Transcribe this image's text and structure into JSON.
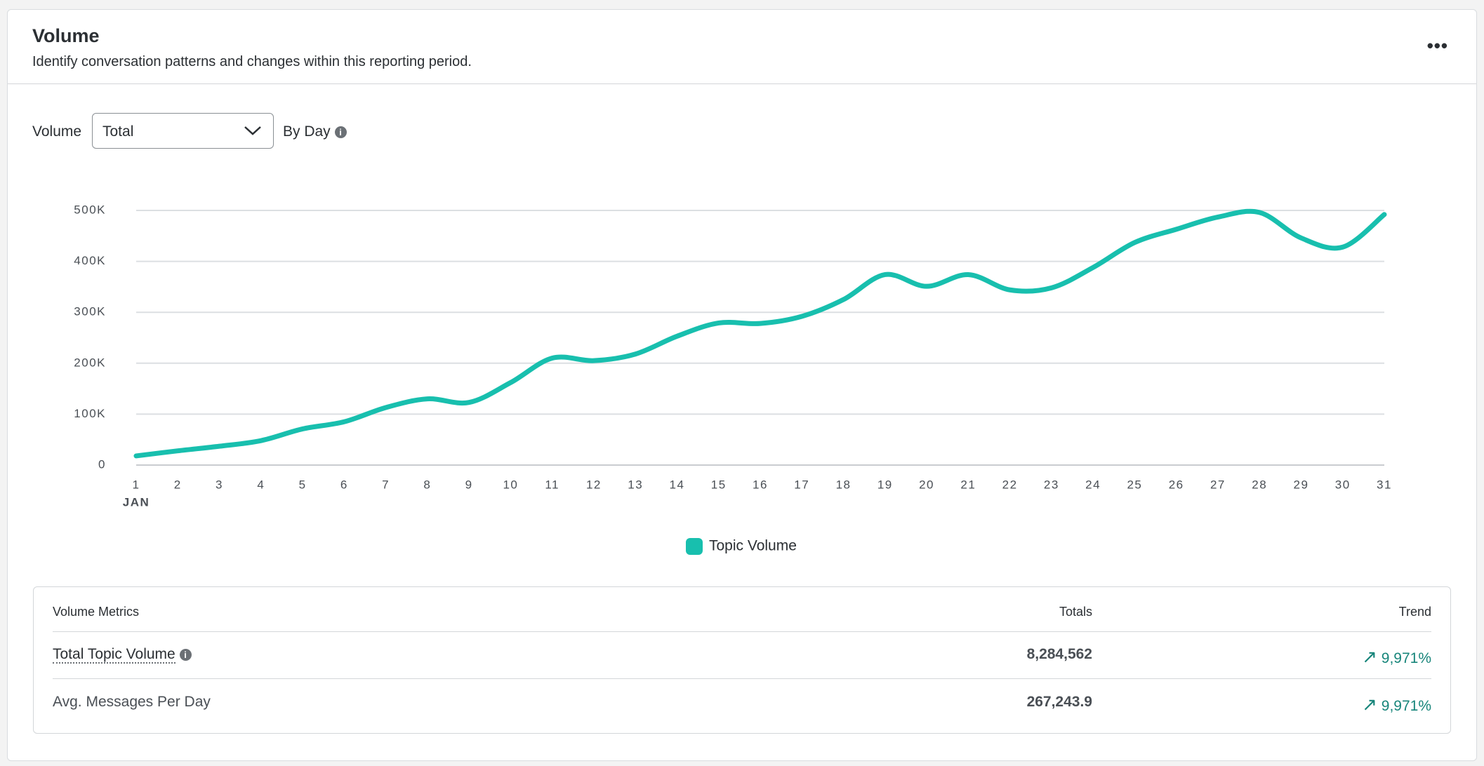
{
  "header": {
    "title": "Volume",
    "subtitle": "Identify conversation patterns and changes within this reporting period."
  },
  "controls": {
    "label": "Volume",
    "select": "Total",
    "granularity": "By Day"
  },
  "chart_data": {
    "type": "line",
    "categories": [
      "1",
      "2",
      "3",
      "4",
      "5",
      "6",
      "7",
      "8",
      "9",
      "10",
      "11",
      "12",
      "13",
      "14",
      "15",
      "16",
      "17",
      "18",
      "19",
      "20",
      "21",
      "22",
      "23",
      "24",
      "25",
      "26",
      "27",
      "28",
      "29",
      "30",
      "31"
    ],
    "x_group_label": "JAN",
    "series": [
      {
        "name": "Topic Volume",
        "color": "#18bfae",
        "values": [
          18000,
          28000,
          37000,
          48000,
          71000,
          85000,
          113000,
          130000,
          123000,
          162000,
          210000,
          205000,
          218000,
          253000,
          279000,
          278000,
          292000,
          325000,
          374000,
          351000,
          374000,
          344000,
          348000,
          388000,
          437000,
          463000,
          487000,
          496000,
          446000,
          428000,
          492000
        ]
      }
    ],
    "ylim": [
      0,
      500000
    ],
    "yticks": [
      0,
      {
        "value": 100000,
        "label": "100K"
      },
      {
        "value": 200000,
        "label": "200K"
      },
      {
        "value": 300000,
        "label": "300K"
      },
      {
        "value": 400000,
        "label": "400K"
      },
      {
        "value": 500000,
        "label": "500K"
      }
    ],
    "grid": true
  },
  "table": {
    "headers": [
      "Volume Metrics",
      "Totals",
      "Trend"
    ],
    "rows": [
      [
        "Total Topic Volume",
        "8,284,562",
        "9,971%"
      ],
      [
        "Avg. Messages Per Day",
        "267,243.9",
        "9,971%"
      ]
    ]
  }
}
